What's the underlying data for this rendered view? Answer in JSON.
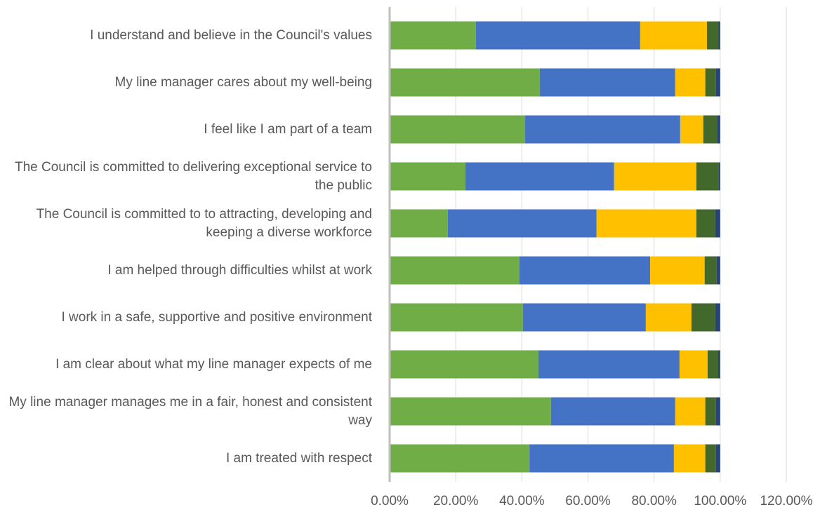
{
  "chart_data": {
    "type": "stacked-barh",
    "categories": [
      "I understand and believe in the Council's values",
      "My line manager cares about my well-being",
      "I feel like I am part of a team",
      "The Council is committed to delivering exceptional service to the public",
      "The Council is committed to to attracting, developing and keeping a diverse workforce",
      "I am helped through difficulties whilst at work",
      "I work in a safe, supportive and positive environment",
      "I am clear about what my line manager expects of me",
      "My line manager manages me in a fair, honest and consistent way",
      "I am treated with respect"
    ],
    "series": [
      {
        "color": "#70ad47",
        "values": [
          26.1,
          45.4,
          41.0,
          22.9,
          17.6,
          39.3,
          40.3,
          45.0,
          48.8,
          42.3
        ]
      },
      {
        "color": "#4472c4",
        "values": [
          49.7,
          41.0,
          46.9,
          45.0,
          45.0,
          39.5,
          37.2,
          42.7,
          37.6,
          43.7
        ]
      },
      {
        "color": "#ffc000",
        "values": [
          20.2,
          9.1,
          7.0,
          24.9,
          30.2,
          16.5,
          13.8,
          8.5,
          9.1,
          9.5
        ]
      },
      {
        "color": "#43682b",
        "values": [
          3.5,
          3.2,
          4.2,
          6.8,
          5.7,
          3.6,
          7.2,
          3.2,
          3.2,
          3.2
        ]
      },
      {
        "color": "#264478",
        "values": [
          0.5,
          1.3,
          0.9,
          0.4,
          1.5,
          1.1,
          1.5,
          0.6,
          1.3,
          1.3
        ]
      }
    ],
    "xlim": [
      0,
      120
    ],
    "xticks": [
      {
        "value": 0,
        "label": "0.00%"
      },
      {
        "value": 20,
        "label": "20.00%"
      },
      {
        "value": 40,
        "label": "40.00%"
      },
      {
        "value": 60,
        "label": "60.00%"
      },
      {
        "value": 80,
        "label": "80.00%"
      },
      {
        "value": 100,
        "label": "100.00%"
      },
      {
        "value": 120,
        "label": "120.00%"
      }
    ],
    "grid": true
  }
}
